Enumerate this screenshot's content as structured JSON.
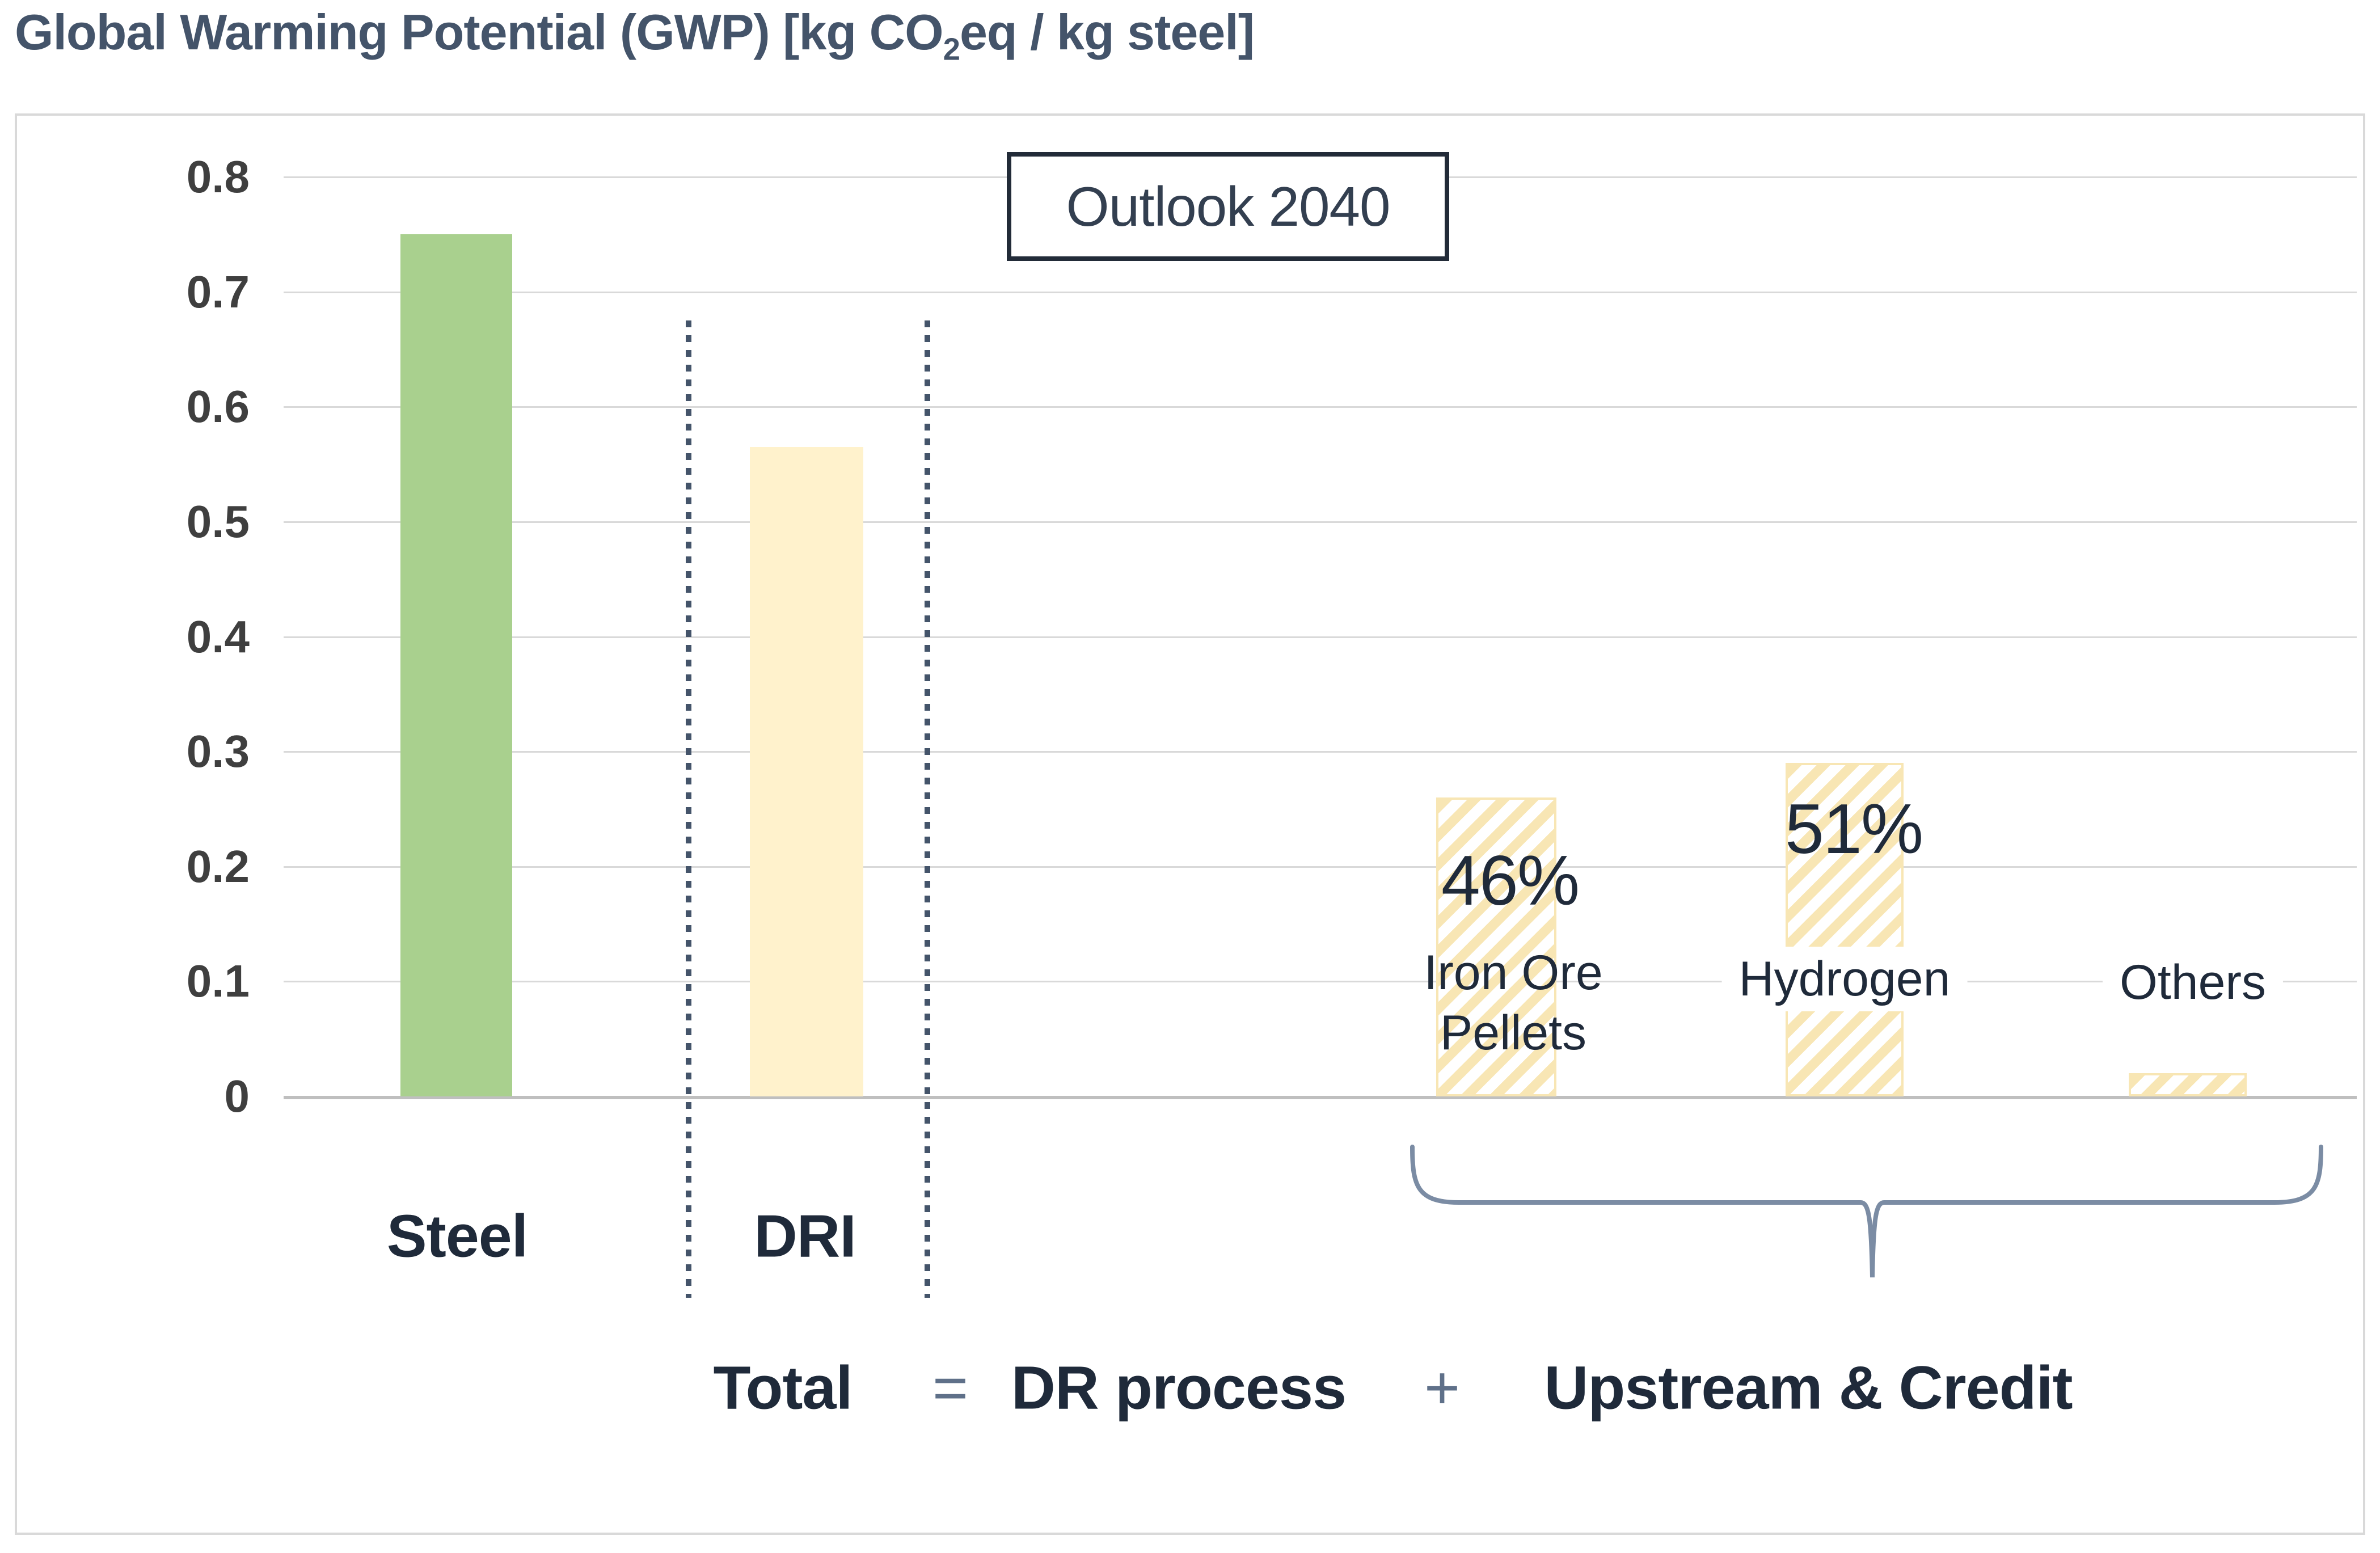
{
  "title": {
    "prefix": "Global Warming Potential (GWP) [kg CO",
    "subscript": "2",
    "suffix": "eq / kg steel]"
  },
  "annotation_box": {
    "label": "Outlook 2040"
  },
  "x_axis_labels": {
    "steel": "Steel",
    "dri": "DRI"
  },
  "bar_annotations": {
    "iron_ore_pct": "46%",
    "hydrogen_pct": "51%",
    "iron_ore_line1": "Iron Ore",
    "iron_ore_line2": "Pellets",
    "hydrogen": "Hydrogen",
    "others": "Others"
  },
  "equation": {
    "total": "Total",
    "equals": "=",
    "dr_process": "DR process",
    "plus": "+",
    "upstream_credit": "Upstream & Credit"
  },
  "colors": {
    "title_text": "#44546a",
    "dark_text": "#1f2a3a",
    "operator_text": "#5f7089",
    "steel_bar": "#a9d08e",
    "dri_bar": "#fff2cc",
    "hatch_stripe": "#f8e6b4",
    "gridline": "#d9d9d9",
    "axis_line": "#bfbfbf",
    "dotted_line": "#44546a",
    "brace": "#7b8ca4",
    "annotation_border": "#222b38"
  },
  "chart_data": {
    "type": "bar",
    "title": "Global Warming Potential (GWP) [kg CO2eq / kg steel]",
    "xlabel": "",
    "ylabel": "kg CO2eq / kg steel",
    "ylim": [
      0,
      0.8
    ],
    "grid": true,
    "legend": "none",
    "annotation": "Outlook 2040",
    "y_ticks": [
      "0",
      "0.1",
      "0.2",
      "0.3",
      "0.4",
      "0.5",
      "0.6",
      "0.7",
      "0.8"
    ],
    "categories": [
      "Steel",
      "DRI",
      "Iron Ore Pellets",
      "Hydrogen",
      "Others"
    ],
    "values": [
      0.75,
      0.565,
      0.26,
      0.29,
      0.02
    ],
    "bar_styles": [
      "solid-green",
      "solid-yellow",
      "hatched-yellow",
      "hatched-yellow",
      "hatched-yellow"
    ],
    "share_of_dri_total": {
      "iron_ore_pellets": "46%",
      "hydrogen": "51%"
    },
    "group_note": "DRI between dotted separators is the Total; hatched bars under the brace are Upstream & Credit components",
    "footnote_equation": "Total = DR process + Upstream & Credit"
  }
}
